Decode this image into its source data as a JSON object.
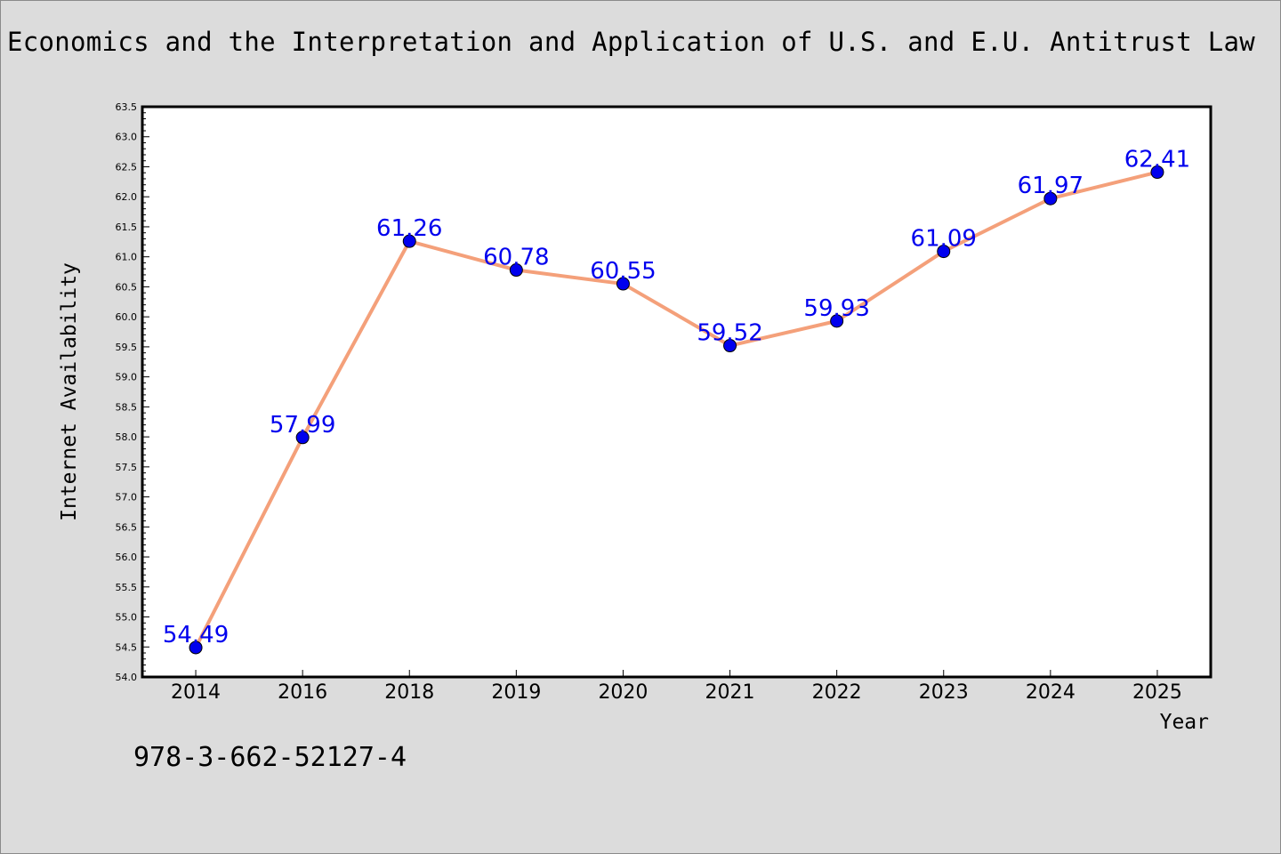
{
  "title": "Economics and the Interpretation and Application of U.S. and E.U. Antitrust Law",
  "isbn": "978-3-662-52127-4",
  "chart_data": {
    "type": "line",
    "categories": [
      "2014",
      "2016",
      "2018",
      "2019",
      "2020",
      "2021",
      "2022",
      "2023",
      "2024",
      "2025"
    ],
    "values": [
      54.49,
      57.99,
      61.26,
      60.78,
      60.55,
      59.52,
      59.93,
      61.09,
      61.97,
      62.41
    ],
    "data_labels": [
      "54.49",
      "57.99",
      "61.26",
      "60.78",
      "60.55",
      "59.52",
      "59.93",
      "61.09",
      "61.97",
      "62.41"
    ],
    "xlabel": "Year",
    "ylabel": "Internet Availability",
    "ylim": [
      54.0,
      63.5
    ],
    "yticks": [
      "54.0",
      "54.5",
      "55.0",
      "55.5",
      "56.0",
      "56.5",
      "57.0",
      "57.5",
      "58.0",
      "58.5",
      "59.0",
      "59.5",
      "60.0",
      "60.5",
      "61.0",
      "61.5",
      "62.0",
      "62.5",
      "63.0",
      "63.5"
    ],
    "grid": false,
    "line_color": "#f4a07a",
    "marker_color": "#0000ee",
    "label_color": "#0000ee"
  }
}
